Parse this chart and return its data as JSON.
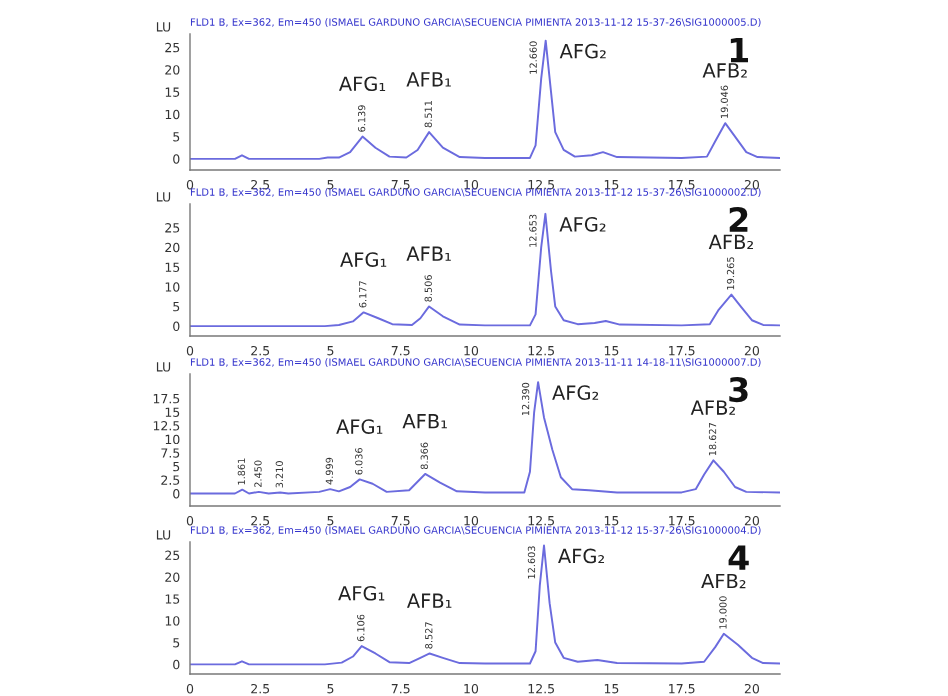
{
  "chart_data": [
    {
      "type": "line",
      "title": "FLD1 B, Ex=362, Em=450 (ISMAEL GARDUNO GARCIA\\SECUENCIA PIMIENTA 2013-11-12 15-37-26\\SIG1000005.D)",
      "ylabel": "LU",
      "xlim": [
        0,
        21
      ],
      "xticks": [
        0,
        2.5,
        5,
        7.5,
        10,
        12.5,
        15,
        17.5,
        20
      ],
      "ylim": [
        -2.5,
        28
      ],
      "yticks": [
        0,
        5,
        10,
        15,
        20,
        25
      ],
      "grid": false,
      "series": [
        {
          "color": "#6b6bde",
          "x": [
            0,
            1.6,
            1.85,
            2.1,
            4.6,
            4.9,
            5.3,
            5.7,
            6.14,
            6.6,
            7.1,
            7.7,
            8.1,
            8.51,
            9.0,
            9.6,
            10.5,
            12.1,
            12.3,
            12.5,
            12.66,
            12.85,
            13.0,
            13.3,
            13.7,
            14.3,
            14.7,
            15.2,
            17.5,
            18.4,
            18.7,
            19.05,
            19.4,
            19.8,
            20.2,
            21
          ],
          "values": [
            0,
            0,
            0.8,
            0,
            0,
            0.3,
            0.3,
            1.5,
            5,
            2.5,
            0.5,
            0.3,
            2,
            6,
            2.5,
            0.4,
            0.2,
            0.2,
            3,
            18,
            26.5,
            15,
            6,
            2,
            0.5,
            0.8,
            1.5,
            0.4,
            0.2,
            0.5,
            4,
            8,
            5,
            1.5,
            0.4,
            0.2
          ]
        }
      ],
      "annotations": [
        {
          "text": "6.139",
          "x": 6.14,
          "y": 5
        },
        {
          "text": "AFG₁",
          "x": 6.14,
          "y": 5
        },
        {
          "text": "8.511",
          "x": 8.51,
          "y": 6
        },
        {
          "text": "AFB₁",
          "x": 8.51,
          "y": 6
        },
        {
          "text": "12.660",
          "x": 12.66,
          "y": 26.5
        },
        {
          "text": "AFG₂",
          "x": 12.66,
          "y": 26.5
        },
        {
          "text": "19.046",
          "x": 19.05,
          "y": 8
        },
        {
          "text": "AFB₂",
          "x": 19.05,
          "y": 8
        },
        "1"
      ]
    },
    {
      "type": "line",
      "title": "FLD1 B, Ex=362, Em=450 (ISMAEL GARDUNO GARCIA\\SECUENCIA PIMIENTA 2013-11-12 15-37-26\\SIG1000002.D)",
      "ylabel": "LU",
      "xlim": [
        0,
        21
      ],
      "xticks": [
        0,
        2.5,
        5,
        7.5,
        10,
        12.5,
        15,
        17.5,
        20
      ],
      "ylim": [
        -2.5,
        31
      ],
      "yticks": [
        0,
        5,
        10,
        15,
        20,
        25
      ],
      "grid": false,
      "series": [
        {
          "color": "#6b6bde",
          "x": [
            0,
            4.8,
            5.3,
            5.8,
            6.18,
            6.7,
            7.2,
            7.9,
            8.2,
            8.51,
            9.0,
            9.6,
            10.5,
            12.1,
            12.3,
            12.5,
            12.65,
            12.85,
            13.0,
            13.3,
            13.8,
            14.4,
            14.8,
            15.3,
            17.5,
            18.5,
            18.8,
            19.27,
            19.6,
            20.0,
            20.4,
            21
          ],
          "values": [
            0,
            0,
            0.3,
            1.2,
            3.5,
            2,
            0.5,
            0.3,
            2,
            5,
            2.5,
            0.4,
            0.2,
            0.2,
            3,
            20,
            28.5,
            14,
            5,
            1.5,
            0.5,
            0.8,
            1.3,
            0.4,
            0.2,
            0.5,
            4,
            8,
            5,
            1.5,
            0.3,
            0.2
          ]
        }
      ],
      "annotations": [
        {
          "text": "6.177",
          "x": 6.18,
          "y": 3.5
        },
        {
          "text": "AFG₁",
          "x": 6.18,
          "y": 3.5
        },
        {
          "text": "8.506",
          "x": 8.51,
          "y": 5
        },
        {
          "text": "AFB₁",
          "x": 8.51,
          "y": 5
        },
        {
          "text": "12.653",
          "x": 12.65,
          "y": 28.5
        },
        {
          "text": "AFG₂",
          "x": 12.65,
          "y": 28.5
        },
        {
          "text": "19.265",
          "x": 19.27,
          "y": 8
        },
        {
          "text": "AFB₂",
          "x": 19.27,
          "y": 8
        },
        "2"
      ]
    },
    {
      "type": "line",
      "title": "FLD1 B, Ex=362, Em=450 (ISMAEL GARDUNO GARCIA\\SECUENCIA PIMIENTA 2013-11-11 14-18-11\\SIG1000007.D)",
      "ylabel": "LU",
      "xlim": [
        0,
        21
      ],
      "xticks": [
        0,
        2.5,
        5,
        7.5,
        10,
        12.5,
        15,
        17.5,
        20
      ],
      "ylim": [
        -2.3,
        22
      ],
      "yticks": [
        0,
        2.5,
        5,
        7.5,
        10,
        12.5,
        15,
        17.5
      ],
      "grid": false,
      "series": [
        {
          "color": "#6b6bde",
          "x": [
            0,
            1.6,
            1.86,
            2.1,
            2.45,
            2.8,
            3.21,
            3.5,
            4.6,
            4.99,
            5.3,
            5.7,
            6.04,
            6.5,
            7.0,
            7.8,
            8.37,
            8.9,
            9.5,
            10.5,
            11.9,
            12.1,
            12.25,
            12.39,
            12.6,
            12.9,
            13.2,
            13.6,
            14.2,
            15.2,
            17.5,
            18.0,
            18.3,
            18.63,
            19.0,
            19.4,
            19.8,
            21
          ],
          "values": [
            0,
            0,
            0.7,
            0,
            0.3,
            0,
            0.2,
            0,
            0.3,
            0.8,
            0.4,
            1.2,
            2.6,
            1.8,
            0.3,
            0.6,
            3.6,
            2,
            0.4,
            0.2,
            0.2,
            4,
            15,
            20.5,
            14,
            8,
            3,
            0.8,
            0.6,
            0.2,
            0.2,
            0.8,
            3.5,
            6.1,
            4,
            1.2,
            0.3,
            0.2
          ]
        }
      ],
      "annotations": [
        {
          "text": "1.861",
          "x": 1.86,
          "y": 0.7
        },
        {
          "text": "2.450",
          "x": 2.45,
          "y": 0.3
        },
        {
          "text": "3.210",
          "x": 3.21,
          "y": 0.2
        },
        {
          "text": "4.999",
          "x": 4.99,
          "y": 0.8
        },
        {
          "text": "6.036",
          "x": 6.04,
          "y": 2.6
        },
        {
          "text": "AFG₁",
          "x": 6.04,
          "y": 2.6
        },
        {
          "text": "8.366",
          "x": 8.37,
          "y": 3.6
        },
        {
          "text": "AFB₁",
          "x": 8.37,
          "y": 3.6
        },
        {
          "text": "12.390",
          "x": 12.39,
          "y": 20.5
        },
        {
          "text": "AFG₂",
          "x": 12.39,
          "y": 20.5
        },
        {
          "text": "18.627",
          "x": 18.63,
          "y": 6.1
        },
        {
          "text": "AFB₂",
          "x": 18.63,
          "y": 6.1
        },
        "3"
      ]
    },
    {
      "type": "line",
      "title": "FLD1 B, Ex=362, Em=450 (ISMAEL GARDUNO GARCIA\\SECUENCIA PIMIENTA 2013-11-12 15-37-26\\SIG1000004.D)",
      "ylabel": "LU",
      "xlim": [
        0,
        21
      ],
      "xticks": [
        0,
        2.5,
        5,
        7.5,
        10,
        12.5,
        15,
        17.5,
        20
      ],
      "ylim": [
        -2.2,
        28
      ],
      "yticks": [
        0,
        5,
        10,
        15,
        20,
        25
      ],
      "grid": false,
      "series": [
        {
          "color": "#6b6bde",
          "x": [
            0,
            1.6,
            1.85,
            2.1,
            4.8,
            5.4,
            5.8,
            6.11,
            6.6,
            7.1,
            7.8,
            8.2,
            8.53,
            9.0,
            9.6,
            10.5,
            12.1,
            12.3,
            12.45,
            12.6,
            12.8,
            13.0,
            13.3,
            13.8,
            14.5,
            15.2,
            17.5,
            18.3,
            18.7,
            19.0,
            19.5,
            20.0,
            20.4,
            21
          ],
          "values": [
            0,
            0,
            0.7,
            0,
            0,
            0.4,
            1.8,
            4.2,
            2.5,
            0.5,
            0.3,
            1.5,
            2.5,
            1.5,
            0.3,
            0.2,
            0.2,
            3,
            18,
            27.2,
            14,
            5,
            1.5,
            0.6,
            1,
            0.3,
            0.2,
            0.6,
            4,
            7,
            4.5,
            1.5,
            0.3,
            0.2
          ]
        }
      ],
      "annotations": [
        {
          "text": "6.106",
          "x": 6.11,
          "y": 4.2
        },
        {
          "text": "AFG₁",
          "x": 6.11,
          "y": 4.2
        },
        {
          "text": "8.527",
          "x": 8.53,
          "y": 2.5
        },
        {
          "text": "AFB₁",
          "x": 8.53,
          "y": 2.5
        },
        {
          "text": "12.603",
          "x": 12.6,
          "y": 27.2
        },
        {
          "text": "AFG₂",
          "x": 12.6,
          "y": 27.2
        },
        {
          "text": "19.000",
          "x": 19.0,
          "y": 7
        },
        {
          "text": "AFB₂",
          "x": 19.0,
          "y": 7
        },
        "4"
      ]
    }
  ]
}
